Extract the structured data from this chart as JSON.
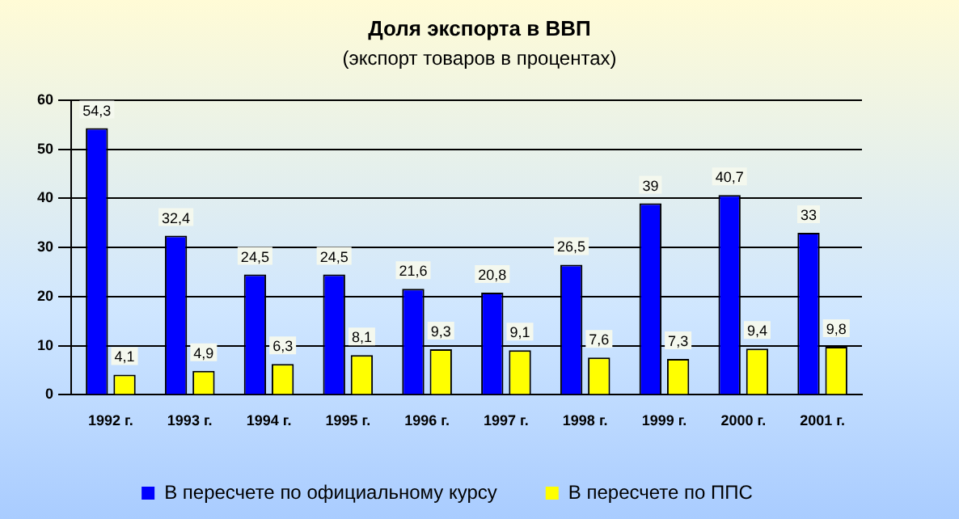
{
  "chart_data": {
    "type": "bar",
    "title": "Доля экспорта в ВВП",
    "subtitle": "(экспорт товаров в процентах)",
    "categories": [
      "1992 г.",
      "1993 г.",
      "1994 г.",
      "1995 г.",
      "1996 г.",
      "1997 г.",
      "1998 г.",
      "1999 г.",
      "2000 г.",
      "2001 г."
    ],
    "series": [
      {
        "name": "В пересчете по официальному курсу",
        "color": "#0000ff",
        "values": [
          54.3,
          32.4,
          24.5,
          24.5,
          21.6,
          20.8,
          26.5,
          39,
          40.7,
          33
        ],
        "value_labels": [
          "54,3",
          "32,4",
          "24,5",
          "24,5",
          "21,6",
          "20,8",
          "26,5",
          "39",
          "40,7",
          "33"
        ]
      },
      {
        "name": "В пересчете по ППС",
        "color": "#ffff00",
        "values": [
          4.1,
          4.9,
          6.3,
          8.1,
          9.3,
          9.1,
          7.6,
          7.3,
          9.4,
          9.8
        ],
        "value_labels": [
          "4,1",
          "4,9",
          "6,3",
          "8,1",
          "9,3",
          "9,1",
          "7,6",
          "7,3",
          "9,4",
          "9,8"
        ]
      }
    ],
    "ylim": [
      0,
      60
    ],
    "yticks": [
      0,
      10,
      20,
      30,
      40,
      50,
      60
    ],
    "grid": "y",
    "legend": "bottom"
  }
}
